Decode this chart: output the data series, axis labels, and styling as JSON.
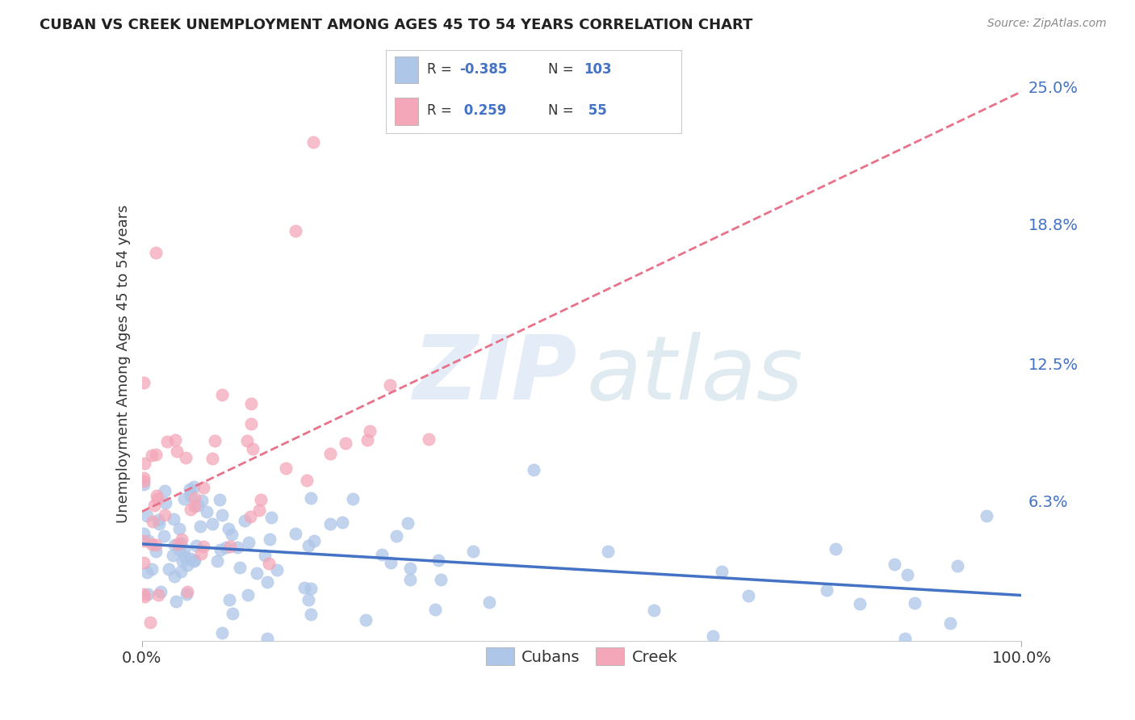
{
  "title": "CUBAN VS CREEK UNEMPLOYMENT AMONG AGES 45 TO 54 YEARS CORRELATION CHART",
  "source": "Source: ZipAtlas.com",
  "ylabel": "Unemployment Among Ages 45 to 54 years",
  "xlim": [
    0,
    1.0
  ],
  "ylim": [
    0,
    0.25
  ],
  "yticks": [
    0.063,
    0.125,
    0.188,
    0.25
  ],
  "ytick_labels": [
    "6.3%",
    "12.5%",
    "18.8%",
    "25.0%"
  ],
  "xticks": [
    0.0,
    1.0
  ],
  "xtick_labels": [
    "0.0%",
    "100.0%"
  ],
  "legend_labels": [
    "Cubans",
    "Creek"
  ],
  "cuban_color": "#aec6e8",
  "creek_color": "#f4a7b9",
  "cuban_line_color": "#4472c4",
  "creek_line_color": "#e8728a",
  "R_cuban": -0.385,
  "N_cuban": 103,
  "R_creek": 0.259,
  "N_creek": 55,
  "background_color": "#ffffff",
  "grid_color": "#cccccc",
  "right_tick_color": "#4472c4",
  "title_color": "#222222",
  "source_color": "#888888",
  "label_color": "#333333"
}
